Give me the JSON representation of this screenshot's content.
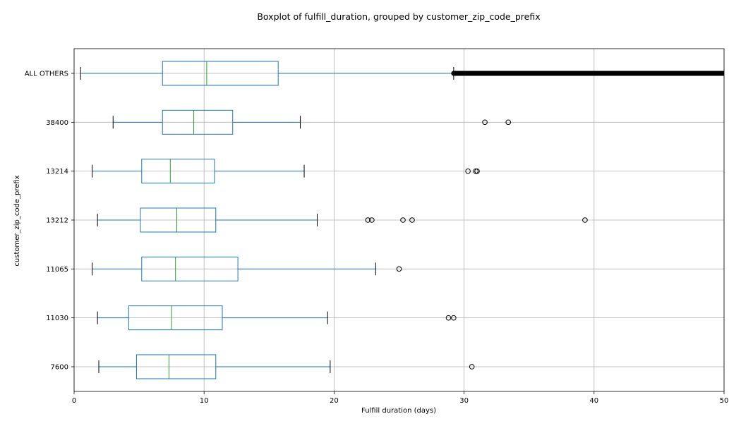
{
  "chart_data": {
    "type": "boxplot",
    "title": "Boxplot of fulfill_duration, grouped by customer_zip_code_prefix",
    "xlabel": "Fulfill duration (days)",
    "ylabel": "customer_zip_code_prefix",
    "xlim": [
      0,
      50
    ],
    "xticks": [
      0,
      10,
      20,
      30,
      40,
      50
    ],
    "grid": true,
    "orientation": "horizontal",
    "colors": {
      "box": "#1f77b4",
      "median": "#2ca02c",
      "outlier": "#000000",
      "grid": "#b0b0b0"
    },
    "categories": [
      "ALL OTHERS",
      "38400",
      "13214",
      "13212",
      "11065",
      "11030",
      "7600"
    ],
    "boxes": [
      {
        "label": "ALL OTHERS",
        "whisker_low": 0.5,
        "q1": 6.8,
        "median": 10.2,
        "q3": 15.7,
        "whisker_high": 29.2,
        "outliers": [],
        "outlier_band": [
          29.2,
          50
        ]
      },
      {
        "label": "38400",
        "whisker_low": 3.0,
        "q1": 6.8,
        "median": 9.2,
        "q3": 12.2,
        "whisker_high": 17.4,
        "outliers": [
          31.6,
          33.4
        ]
      },
      {
        "label": "13214",
        "whisker_low": 1.4,
        "q1": 5.2,
        "median": 7.4,
        "q3": 10.8,
        "whisker_high": 17.7,
        "outliers": [
          30.3,
          30.9,
          31.0
        ]
      },
      {
        "label": "13212",
        "whisker_low": 1.8,
        "q1": 5.1,
        "median": 7.9,
        "q3": 10.9,
        "whisker_high": 18.7,
        "outliers": [
          22.6,
          22.9,
          25.3,
          26.0,
          39.3
        ]
      },
      {
        "label": "11065",
        "whisker_low": 1.4,
        "q1": 5.2,
        "median": 7.8,
        "q3": 12.6,
        "whisker_high": 23.2,
        "outliers": [
          25.0
        ]
      },
      {
        "label": "11030",
        "whisker_low": 1.8,
        "q1": 4.2,
        "median": 7.5,
        "q3": 11.4,
        "whisker_high": 19.5,
        "outliers": [
          28.8,
          29.2
        ]
      },
      {
        "label": "7600",
        "whisker_low": 1.9,
        "q1": 4.8,
        "median": 7.3,
        "q3": 10.9,
        "whisker_high": 19.7,
        "outliers": [
          30.6
        ]
      }
    ]
  }
}
